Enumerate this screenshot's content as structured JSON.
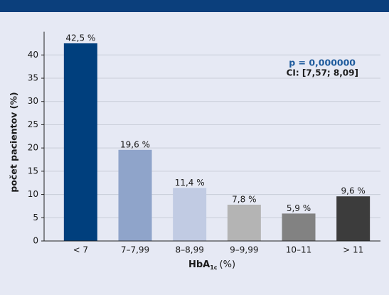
{
  "chart_data": {
    "type": "bar",
    "categories": [
      "< 7",
      "7–7,99",
      "8–8,99",
      "9–9,99",
      "10–11",
      "> 11"
    ],
    "values": [
      42.5,
      19.6,
      11.4,
      7.8,
      5.9,
      9.6
    ],
    "value_labels": [
      "42,5 %",
      "19,6 %",
      "11,4 %",
      "7,8 %",
      "5,9 %",
      "9,6 %"
    ],
    "colors": [
      "#003f7d",
      "#8fa4ca",
      "#c1cbe3",
      "#b4b4b4",
      "#828282",
      "#3c3c3c"
    ],
    "ylabel": "počet pacientov (%)",
    "xlabel": {
      "main": "HbA",
      "sub": "1c",
      "unit": "(%)"
    },
    "annotations": [
      "p = 0,000000",
      "CI: [7,57; 8,09]"
    ],
    "ylim": [
      0,
      45
    ],
    "yticks": [
      0,
      5,
      10,
      15,
      20,
      25,
      30,
      35,
      40
    ],
    "grid": true
  }
}
